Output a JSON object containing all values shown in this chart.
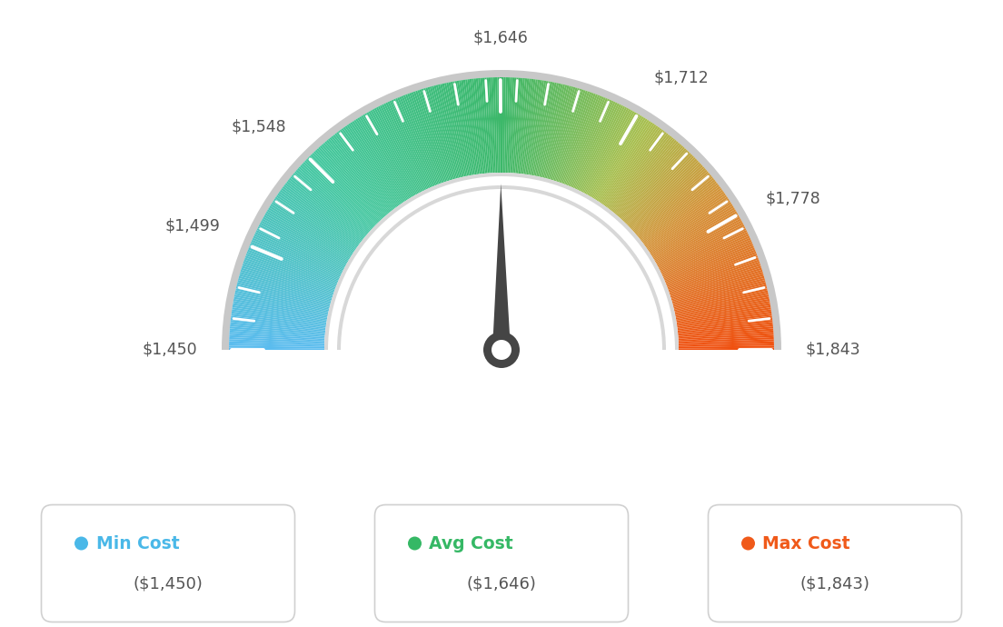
{
  "min_val": 1450,
  "max_val": 1843,
  "avg_val": 1646,
  "tick_labels": [
    "$1,450",
    "$1,499",
    "$1,548",
    "$1,646",
    "$1,712",
    "$1,778",
    "$1,843"
  ],
  "tick_values": [
    1450,
    1499,
    1548,
    1646,
    1712,
    1778,
    1843
  ],
  "legend": [
    {
      "label": "Min Cost",
      "sublabel": "($1,450)",
      "color": "#4ab8e8"
    },
    {
      "label": "Avg Cost",
      "sublabel": "($1,646)",
      "color": "#35b865"
    },
    {
      "label": "Max Cost",
      "sublabel": "($1,843)",
      "color": "#f05a1a"
    }
  ],
  "needle_value": 1646,
  "background_color": "#ffffff",
  "color_stops": [
    [
      0.0,
      "#5bbcf0"
    ],
    [
      0.25,
      "#45c8a0"
    ],
    [
      0.5,
      "#3cb86a"
    ],
    [
      0.68,
      "#a8c050"
    ],
    [
      0.8,
      "#d4943a"
    ],
    [
      1.0,
      "#f05010"
    ]
  ]
}
